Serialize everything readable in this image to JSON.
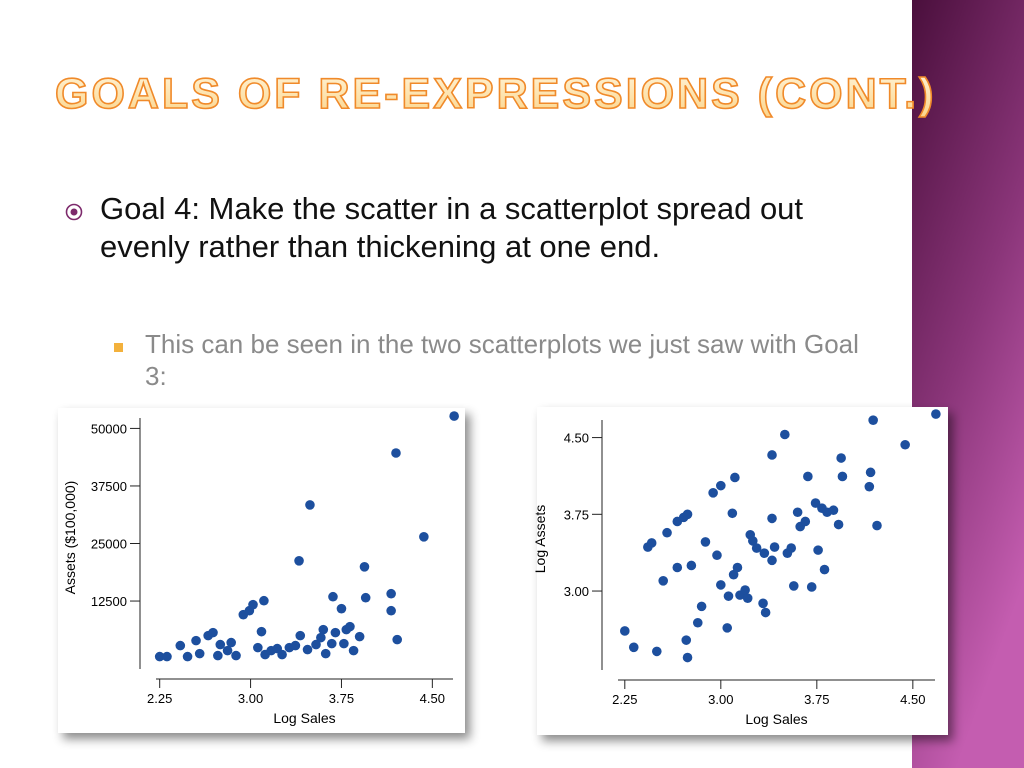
{
  "title": "GOALS OF RE-EXPRESSIONS (CONT.)",
  "bullets": [
    {
      "text": "Goal 4: Make the scatter in a scatterplot spread out evenly rather than thickening at one end.",
      "sub": [
        "This can be seen in the two scatterplots we just saw with Goal 3:"
      ]
    }
  ],
  "chart_data": [
    {
      "type": "scatter",
      "xlabel": "Log Sales",
      "ylabel": "Assets ($100,000)",
      "color": "#1d4f9e",
      "xlim": [
        2.17,
        4.72
      ],
      "ylim": [
        -4000,
        54000
      ],
      "xticks": [
        2.25,
        {
          "value": 3,
          "label": "3.00"
        },
        3.75,
        {
          "value": 4.5,
          "label": "4.50"
        }
      ],
      "yticks": [
        12500,
        25000,
        37500,
        50000
      ],
      "x": [
        2.25,
        2.31,
        2.42,
        2.48,
        2.55,
        2.58,
        2.65,
        2.69,
        2.73,
        2.75,
        2.81,
        2.84,
        2.88,
        2.94,
        2.99,
        3.02,
        3.06,
        3.11,
        3.09,
        3.12,
        3.17,
        3.22,
        3.26,
        3.32,
        3.37,
        3.4,
        3.41,
        3.47,
        3.49,
        3.54,
        3.58,
        3.6,
        3.62,
        3.67,
        3.68,
        3.7,
        3.75,
        3.77,
        3.79,
        3.82,
        3.85,
        3.9,
        3.94,
        3.95,
        4.16,
        4.16,
        4.2,
        4.21,
        4.43,
        4.68
      ],
      "values": [
        430,
        430,
        2820,
        430,
        3900,
        1080,
        4990,
        5640,
        650,
        3040,
        1730,
        3470,
        650,
        9540,
        10400,
        11710,
        2380,
        12570,
        5850,
        870,
        1730,
        2170,
        870,
        2380,
        2820,
        21240,
        4990,
        1950,
        33380,
        3040,
        4550,
        6290,
        1080,
        3250,
        13440,
        5640,
        10840,
        3250,
        6290,
        6940,
        1730,
        4770,
        19940,
        13220,
        14090,
        10400,
        44660,
        4120,
        26450,
        52680
      ]
    },
    {
      "type": "scatter",
      "xlabel": "Log Sales",
      "ylabel": "Log Assets",
      "color": "#1d4f9e",
      "xlim": [
        2.15,
        4.72
      ],
      "ylim": [
        2.15,
        4.75
      ],
      "xticks": [
        2.25,
        {
          "value": 3,
          "label": "3.00"
        },
        3.75,
        {
          "value": 4.5,
          "label": "4.50"
        }
      ],
      "yticks": [
        {
          "value": 3,
          "label": "3.00"
        },
        3.75,
        {
          "value": 4.5,
          "label": "4.50"
        }
      ],
      "x": [
        2.25,
        2.32,
        2.43,
        2.46,
        2.5,
        2.55,
        2.58,
        2.66,
        2.66,
        2.71,
        2.74,
        2.73,
        2.74,
        2.77,
        2.82,
        2.85,
        2.88,
        2.94,
        3.0,
        3.11,
        2.97,
        3.0,
        3.05,
        3.06,
        3.1,
        3.13,
        3.09,
        3.15,
        3.19,
        3.21,
        3.23,
        3.25,
        3.28,
        3.33,
        3.35,
        3.34,
        3.4,
        3.4,
        3.42,
        3.4,
        3.5,
        3.52,
        3.55,
        3.57,
        3.6,
        3.62,
        3.66,
        3.68,
        3.71,
        3.74,
        3.76,
        3.79,
        3.83,
        3.88,
        3.81,
        3.92,
        3.94,
        3.95,
        4.16,
        4.17,
        4.19,
        4.22,
        4.44,
        4.68
      ],
      "values": [
        2.61,
        2.45,
        3.43,
        3.47,
        2.41,
        3.1,
        3.57,
        3.23,
        3.68,
        3.72,
        3.75,
        2.52,
        2.35,
        3.25,
        2.69,
        2.85,
        3.48,
        3.96,
        4.03,
        4.11,
        3.35,
        3.06,
        2.64,
        2.95,
        3.16,
        3.23,
        3.76,
        2.96,
        3.01,
        2.93,
        3.55,
        3.49,
        3.42,
        2.88,
        2.79,
        3.37,
        3.71,
        3.3,
        3.43,
        4.33,
        4.53,
        3.37,
        3.42,
        3.05,
        3.77,
        3.63,
        3.68,
        4.12,
        3.04,
        3.86,
        3.4,
        3.81,
        3.77,
        3.79,
        3.21,
        3.65,
        4.3,
        4.12,
        4.02,
        4.16,
        4.67,
        3.64,
        4.43,
        4.73
      ]
    }
  ]
}
